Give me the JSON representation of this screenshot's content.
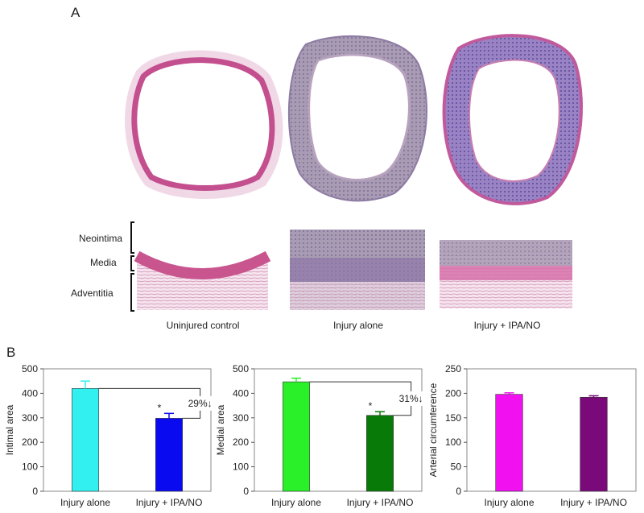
{
  "panel_a": {
    "label": "A",
    "layers": [
      "Neointima",
      "Media",
      "Adventitia"
    ],
    "captions": [
      "Uninjured control",
      "Injury alone",
      "Injury + IPA/NO"
    ]
  },
  "panel_b": {
    "label": "B"
  },
  "chart_data": [
    {
      "type": "bar",
      "categories": [
        "Injury alone",
        "Injury + IPA/NO"
      ],
      "values": [
        420,
        298
      ],
      "errors": [
        30,
        20
      ],
      "colors": [
        "#33f0f0",
        "#0a0af0"
      ],
      "ylabel": "Intimal area",
      "ylim": [
        0,
        500
      ],
      "yticks": [
        0,
        100,
        200,
        300,
        400,
        500
      ],
      "significance": [
        {
          "index": 1,
          "mark": "*"
        }
      ],
      "annotation": "29%↓"
    },
    {
      "type": "bar",
      "categories": [
        "Injury alone",
        "Injury + IPA/NO"
      ],
      "values": [
        447,
        310
      ],
      "errors": [
        15,
        15
      ],
      "colors": [
        "#2af02a",
        "#087a08"
      ],
      "ylabel": "Medial area",
      "ylim": [
        0,
        500
      ],
      "yticks": [
        0,
        100,
        200,
        300,
        400,
        500
      ],
      "significance": [
        {
          "index": 1,
          "mark": "*"
        }
      ],
      "annotation": "31%↓"
    },
    {
      "type": "bar",
      "categories": [
        "Injury alone",
        "Injury + IPA/NO"
      ],
      "values": [
        198,
        192
      ],
      "errors": [
        3,
        3
      ],
      "colors": [
        "#f010f0",
        "#7a0a7a"
      ],
      "ylabel": "Arterial circumference",
      "ylim": [
        0,
        250
      ],
      "yticks": [
        0,
        50,
        100,
        150,
        200,
        250
      ],
      "significance": [],
      "annotation": ""
    }
  ]
}
